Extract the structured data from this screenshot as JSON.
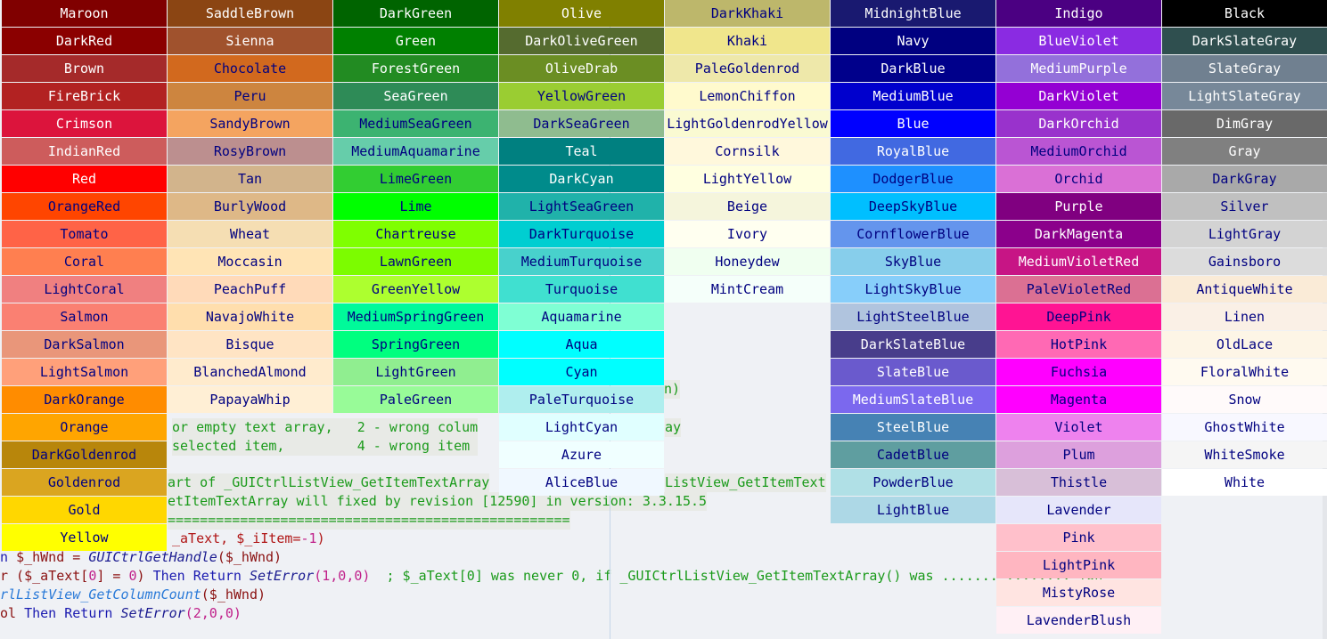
{
  "editor": {
    "lines": [
      {
        "segments": [
          {
            "t": "n)",
            "c": "#1a9a1a"
          }
        ],
        "pos": "l745t427"
      },
      {
        "segments": [
          {
            "t": "or empty text array,   2 - wrong colum",
            "c": "#1a9a1a"
          }
        ],
        "pos": "l193t470"
      },
      {
        "segments": [
          {
            "t": "ay",
            "c": "#1a9a1a"
          }
        ],
        "pos": "l746t470"
      },
      {
        "segments": [
          {
            "t": "selected item,         4 - wrong item ",
            "c": "#1a9a1a"
          }
        ],
        "pos": "l193t491"
      },
      {
        "segments": [
          {
            "t": "art of _GUICtrlListView_GetItemTextArray",
            "c": "#1a9a1a"
          }
        ],
        "pos": "l188t532"
      },
      {
        "segments": [
          {
            "t": "ListView_GetItemText",
            "c": "#1a9a1a"
          }
        ],
        "pos": "l746t532"
      },
      {
        "segments": [
          {
            "t": "etItemTextArray will fixed by revision [12590] in version: 3.3.15.5",
            "c": "#1a9a1a"
          }
        ],
        "pos": "l188t553"
      },
      {
        "segments": [
          {
            "t": "==================================================",
            "c": "#1a9a1a"
          }
        ],
        "pos": "l188t574"
      },
      {
        "segments": [
          {
            "t": "_aText, $_iItem=",
            "c": "#b01515"
          },
          {
            "t": "-1",
            "c": "#c0208a"
          },
          {
            "t": ")",
            "c": "#b01515"
          }
        ],
        "pos": "l193t595"
      },
      {
        "segments": [
          {
            "t": "n ",
            "c": "#1a1ab0"
          },
          {
            "t": "$_hWnd = ",
            "c": "#8a1010"
          },
          {
            "t": "GUICtrlGetHandle",
            "c": "#1a1a90"
          },
          {
            "t": "($_hWnd)",
            "c": "#8a1010"
          }
        ],
        "pos": "l0t616"
      },
      {
        "segments": [
          {
            "t": "r ($_aText[",
            "c": "#8a1010"
          },
          {
            "t": "0",
            "c": "#c0208a"
          },
          {
            "t": "] = ",
            "c": "#8a1010"
          },
          {
            "t": "0",
            "c": "#c0208a"
          },
          {
            "t": ") ",
            "c": "#8a1010"
          },
          {
            "t": "Then Return ",
            "c": "#1a1ab0"
          },
          {
            "t": "SetError",
            "c": "#1a1a90"
          },
          {
            "t": "(1,0,0)",
            "c": "#c0208a"
          },
          {
            "t": "  ; $_aText[0] was never 0, if _GUICtrlListView_GetItemTextArray() was ....... ........ ion",
            "c": "#1a9a1a"
          }
        ],
        "pos": "l0t637"
      },
      {
        "segments": [
          {
            "t": "rlListView_GetColumnCount",
            "c": "#2a7ad8"
          },
          {
            "t": "($_hWnd)",
            "c": "#8a1010"
          }
        ],
        "pos": "l0t658"
      },
      {
        "segments": [
          {
            "t": "ol ",
            "c": "#8a1010"
          },
          {
            "t": "Then Return ",
            "c": "#1a1ab0"
          },
          {
            "t": "SetError",
            "c": "#1a1a90"
          },
          {
            "t": "(2,0,0)",
            "c": "#c0208a"
          }
        ],
        "pos": "l0t679"
      }
    ]
  },
  "color_columns": [
    [
      {
        "name": "Maroon",
        "hex": "#800000",
        "text": "#ffffff"
      },
      {
        "name": "DarkRed",
        "hex": "#8b0000",
        "text": "#ffffff"
      },
      {
        "name": "Brown",
        "hex": "#a52a2a",
        "text": "#ffffff"
      },
      {
        "name": "FireBrick",
        "hex": "#b22222",
        "text": "#ffffff"
      },
      {
        "name": "Crimson",
        "hex": "#dc143c",
        "text": "#ffffff"
      },
      {
        "name": "IndianRed",
        "hex": "#cd5c5c",
        "text": "#ffffff"
      },
      {
        "name": "Red",
        "hex": "#ff0000",
        "text": "#ffffff"
      },
      {
        "name": "OrangeRed",
        "hex": "#ff4500",
        "text": "#000080"
      },
      {
        "name": "Tomato",
        "hex": "#ff6347",
        "text": "#000080"
      },
      {
        "name": "Coral",
        "hex": "#ff7f50",
        "text": "#000080"
      },
      {
        "name": "LightCoral",
        "hex": "#f08080",
        "text": "#000080"
      },
      {
        "name": "Salmon",
        "hex": "#fa8072",
        "text": "#000080"
      },
      {
        "name": "DarkSalmon",
        "hex": "#e9967a",
        "text": "#000080"
      },
      {
        "name": "LightSalmon",
        "hex": "#ffa07a",
        "text": "#000080"
      },
      {
        "name": "DarkOrange",
        "hex": "#ff8c00",
        "text": "#000080"
      },
      {
        "name": "Orange",
        "hex": "#ffa500",
        "text": "#000080"
      },
      {
        "name": "DarkGoldenrod",
        "hex": "#b8860b",
        "text": "#000080"
      },
      {
        "name": "Goldenrod",
        "hex": "#daa520",
        "text": "#000080"
      },
      {
        "name": "Gold",
        "hex": "#ffd700",
        "text": "#000080"
      },
      {
        "name": "Yellow",
        "hex": "#ffff00",
        "text": "#000080"
      }
    ],
    [
      {
        "name": "SaddleBrown",
        "hex": "#8b4513",
        "text": "#ffffff"
      },
      {
        "name": "Sienna",
        "hex": "#a0522d",
        "text": "#ffffff"
      },
      {
        "name": "Chocolate",
        "hex": "#d2691e",
        "text": "#000080"
      },
      {
        "name": "Peru",
        "hex": "#cd853f",
        "text": "#000080"
      },
      {
        "name": "SandyBrown",
        "hex": "#f4a460",
        "text": "#000080"
      },
      {
        "name": "RosyBrown",
        "hex": "#bc8f8f",
        "text": "#000080"
      },
      {
        "name": "Tan",
        "hex": "#d2b48c",
        "text": "#000080"
      },
      {
        "name": "BurlyWood",
        "hex": "#deb887",
        "text": "#000080"
      },
      {
        "name": "Wheat",
        "hex": "#f5deb3",
        "text": "#000080"
      },
      {
        "name": "Moccasin",
        "hex": "#ffe4b5",
        "text": "#000080"
      },
      {
        "name": "PeachPuff",
        "hex": "#ffdab9",
        "text": "#000080"
      },
      {
        "name": "NavajoWhite",
        "hex": "#ffdead",
        "text": "#000080"
      },
      {
        "name": "Bisque",
        "hex": "#ffe4c4",
        "text": "#000080"
      },
      {
        "name": "BlanchedAlmond",
        "hex": "#ffebcd",
        "text": "#000080"
      },
      {
        "name": "PapayaWhip",
        "hex": "#ffefd5",
        "text": "#000080"
      }
    ],
    [
      {
        "name": "DarkGreen",
        "hex": "#006400",
        "text": "#ffffff"
      },
      {
        "name": "Green",
        "hex": "#008000",
        "text": "#ffffff"
      },
      {
        "name": "ForestGreen",
        "hex": "#228b22",
        "text": "#ffffff"
      },
      {
        "name": "SeaGreen",
        "hex": "#2e8b57",
        "text": "#ffffff"
      },
      {
        "name": "MediumSeaGreen",
        "hex": "#3cb371",
        "text": "#000080"
      },
      {
        "name": "MediumAquamarine",
        "hex": "#66cdaa",
        "text": "#000080"
      },
      {
        "name": "LimeGreen",
        "hex": "#32cd32",
        "text": "#000080"
      },
      {
        "name": "Lime",
        "hex": "#00ff00",
        "text": "#000080"
      },
      {
        "name": "Chartreuse",
        "hex": "#7fff00",
        "text": "#000080"
      },
      {
        "name": "LawnGreen",
        "hex": "#7cfc00",
        "text": "#000080"
      },
      {
        "name": "GreenYellow",
        "hex": "#adff2f",
        "text": "#000080"
      },
      {
        "name": "MediumSpringGreen",
        "hex": "#00fa9a",
        "text": "#000080"
      },
      {
        "name": "SpringGreen",
        "hex": "#00ff7f",
        "text": "#000080"
      },
      {
        "name": "LightGreen",
        "hex": "#90ee90",
        "text": "#000080"
      },
      {
        "name": "PaleGreen",
        "hex": "#98fb98",
        "text": "#000080"
      }
    ],
    [
      {
        "name": "Olive",
        "hex": "#808000",
        "text": "#ffffff"
      },
      {
        "name": "DarkOliveGreen",
        "hex": "#556b2f",
        "text": "#ffffff"
      },
      {
        "name": "OliveDrab",
        "hex": "#6b8e23",
        "text": "#ffffff"
      },
      {
        "name": "YellowGreen",
        "hex": "#9acd32",
        "text": "#000080"
      },
      {
        "name": "DarkSeaGreen",
        "hex": "#8fbc8f",
        "text": "#000080"
      },
      {
        "name": "Teal",
        "hex": "#008080",
        "text": "#ffffff"
      },
      {
        "name": "DarkCyan",
        "hex": "#008b8b",
        "text": "#ffffff"
      },
      {
        "name": "LightSeaGreen",
        "hex": "#20b2aa",
        "text": "#000080"
      },
      {
        "name": "DarkTurquoise",
        "hex": "#00ced1",
        "text": "#000080"
      },
      {
        "name": "MediumTurquoise",
        "hex": "#48d1cc",
        "text": "#000080"
      },
      {
        "name": "Turquoise",
        "hex": "#40e0d0",
        "text": "#000080"
      },
      {
        "name": "Aquamarine",
        "hex": "#7fffd4",
        "text": "#000080"
      },
      {
        "name": "Aqua",
        "hex": "#00ffff",
        "text": "#000080"
      },
      {
        "name": "Cyan",
        "hex": "#00ffff",
        "text": "#000080"
      },
      {
        "name": "PaleTurquoise",
        "hex": "#afeeee",
        "text": "#000080"
      },
      {
        "name": "LightCyan",
        "hex": "#e0ffff",
        "text": "#000080"
      },
      {
        "name": "Azure",
        "hex": "#f0ffff",
        "text": "#000080"
      },
      {
        "name": "AliceBlue",
        "hex": "#f0f8ff",
        "text": "#000080"
      }
    ],
    [
      {
        "name": "DarkKhaki",
        "hex": "#bdb76b",
        "text": "#000080"
      },
      {
        "name": "Khaki",
        "hex": "#f0e68c",
        "text": "#000080"
      },
      {
        "name": "PaleGoldenrod",
        "hex": "#eee8aa",
        "text": "#000080"
      },
      {
        "name": "LemonChiffon",
        "hex": "#fffacd",
        "text": "#000080"
      },
      {
        "name": "LightGoldenrodYellow",
        "hex": "#fafad2",
        "text": "#000080"
      },
      {
        "name": "Cornsilk",
        "hex": "#fff8dc",
        "text": "#000080"
      },
      {
        "name": "LightYellow",
        "hex": "#ffffe0",
        "text": "#000080"
      },
      {
        "name": "Beige",
        "hex": "#f5f5dc",
        "text": "#000080"
      },
      {
        "name": "Ivory",
        "hex": "#fffff0",
        "text": "#000080"
      },
      {
        "name": "Honeydew",
        "hex": "#f0fff0",
        "text": "#000080"
      },
      {
        "name": "MintCream",
        "hex": "#f5fffa",
        "text": "#000080"
      }
    ],
    [
      {
        "name": "MidnightBlue",
        "hex": "#191970",
        "text": "#ffffff"
      },
      {
        "name": "Navy",
        "hex": "#000080",
        "text": "#ffffff"
      },
      {
        "name": "DarkBlue",
        "hex": "#00008b",
        "text": "#ffffff"
      },
      {
        "name": "MediumBlue",
        "hex": "#0000cd",
        "text": "#ffffff"
      },
      {
        "name": "Blue",
        "hex": "#0000ff",
        "text": "#ffffff"
      },
      {
        "name": "RoyalBlue",
        "hex": "#4169e1",
        "text": "#ffffff"
      },
      {
        "name": "DodgerBlue",
        "hex": "#1e90ff",
        "text": "#000080"
      },
      {
        "name": "DeepSkyBlue",
        "hex": "#00bfff",
        "text": "#000080"
      },
      {
        "name": "CornflowerBlue",
        "hex": "#6495ed",
        "text": "#000080"
      },
      {
        "name": "SkyBlue",
        "hex": "#87ceeb",
        "text": "#000080"
      },
      {
        "name": "LightSkyBlue",
        "hex": "#87cefa",
        "text": "#000080"
      },
      {
        "name": "LightSteelBlue",
        "hex": "#b0c4de",
        "text": "#000080"
      },
      {
        "name": "DarkSlateBlue",
        "hex": "#483d8b",
        "text": "#ffffff"
      },
      {
        "name": "SlateBlue",
        "hex": "#6a5acd",
        "text": "#ffffff"
      },
      {
        "name": "MediumSlateBlue",
        "hex": "#7b68ee",
        "text": "#ffffff"
      },
      {
        "name": "SteelBlue",
        "hex": "#4682b4",
        "text": "#ffffff"
      },
      {
        "name": "CadetBlue",
        "hex": "#5f9ea0",
        "text": "#000080"
      },
      {
        "name": "PowderBlue",
        "hex": "#b0e0e6",
        "text": "#000080"
      },
      {
        "name": "LightBlue",
        "hex": "#add8e6",
        "text": "#000080"
      }
    ],
    [
      {
        "name": "Indigo",
        "hex": "#4b0082",
        "text": "#ffffff"
      },
      {
        "name": "BlueViolet",
        "hex": "#8a2be2",
        "text": "#ffffff"
      },
      {
        "name": "MediumPurple",
        "hex": "#9370db",
        "text": "#ffffff"
      },
      {
        "name": "DarkViolet",
        "hex": "#9400d3",
        "text": "#ffffff"
      },
      {
        "name": "DarkOrchid",
        "hex": "#9932cc",
        "text": "#ffffff"
      },
      {
        "name": "MediumOrchid",
        "hex": "#ba55d3",
        "text": "#000080"
      },
      {
        "name": "Orchid",
        "hex": "#da70d6",
        "text": "#000080"
      },
      {
        "name": "Purple",
        "hex": "#800080",
        "text": "#ffffff"
      },
      {
        "name": "DarkMagenta",
        "hex": "#8b008b",
        "text": "#ffffff"
      },
      {
        "name": "MediumVioletRed",
        "hex": "#c71585",
        "text": "#ffffff"
      },
      {
        "name": "PaleVioletRed",
        "hex": "#db7093",
        "text": "#000080"
      },
      {
        "name": "DeepPink",
        "hex": "#ff1493",
        "text": "#000080"
      },
      {
        "name": "HotPink",
        "hex": "#ff69b4",
        "text": "#000080"
      },
      {
        "name": "Fuchsia",
        "hex": "#ff00ff",
        "text": "#000080"
      },
      {
        "name": "Magenta",
        "hex": "#ff00ff",
        "text": "#000080"
      },
      {
        "name": "Violet",
        "hex": "#ee82ee",
        "text": "#000080"
      },
      {
        "name": "Plum",
        "hex": "#dda0dd",
        "text": "#000080"
      },
      {
        "name": "Thistle",
        "hex": "#d8bfd8",
        "text": "#000080"
      },
      {
        "name": "Lavender",
        "hex": "#e6e6fa",
        "text": "#000080"
      },
      {
        "name": "Pink",
        "hex": "#ffc0cb",
        "text": "#000080"
      },
      {
        "name": "LightPink",
        "hex": "#ffb6c1",
        "text": "#000080"
      },
      {
        "name": "MistyRose",
        "hex": "#ffe4e1",
        "text": "#000080"
      },
      {
        "name": "LavenderBlush",
        "hex": "#fff0f5",
        "text": "#000080"
      }
    ],
    [
      {
        "name": "Black",
        "hex": "#000000",
        "text": "#ffffff"
      },
      {
        "name": "DarkSlateGray",
        "hex": "#2f4f4f",
        "text": "#ffffff"
      },
      {
        "name": "SlateGray",
        "hex": "#708090",
        "text": "#ffffff"
      },
      {
        "name": "LightSlateGray",
        "hex": "#778899",
        "text": "#ffffff"
      },
      {
        "name": "DimGray",
        "hex": "#696969",
        "text": "#ffffff"
      },
      {
        "name": "Gray",
        "hex": "#808080",
        "text": "#ffffff"
      },
      {
        "name": "DarkGray",
        "hex": "#a9a9a9",
        "text": "#000080"
      },
      {
        "name": "Silver",
        "hex": "#c0c0c0",
        "text": "#000080"
      },
      {
        "name": "LightGray",
        "hex": "#d3d3d3",
        "text": "#000080"
      },
      {
        "name": "Gainsboro",
        "hex": "#dcdcdc",
        "text": "#000080"
      },
      {
        "name": "AntiqueWhite",
        "hex": "#faebd7",
        "text": "#000080"
      },
      {
        "name": "Linen",
        "hex": "#faf0e6",
        "text": "#000080"
      },
      {
        "name": "OldLace",
        "hex": "#fdf5e6",
        "text": "#000080"
      },
      {
        "name": "FloralWhite",
        "hex": "#fffaf0",
        "text": "#000080"
      },
      {
        "name": "Snow",
        "hex": "#fffafa",
        "text": "#000080"
      },
      {
        "name": "GhostWhite",
        "hex": "#f8f8ff",
        "text": "#000080"
      },
      {
        "name": "WhiteSmoke",
        "hex": "#f5f5f5",
        "text": "#000080"
      },
      {
        "name": "White",
        "hex": "#ffffff",
        "text": "#000080"
      }
    ]
  ]
}
